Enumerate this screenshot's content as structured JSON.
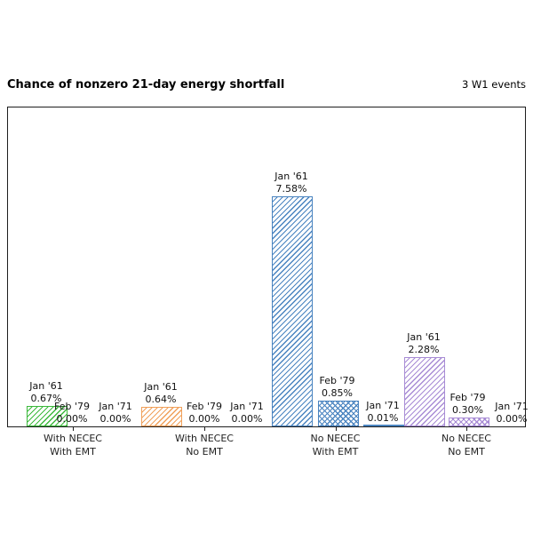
{
  "header": {
    "title": "Chance of nonzero 21-day energy shortfall",
    "right_note": "3 W1 events"
  },
  "chart_data": {
    "type": "bar",
    "title": "Chance of nonzero 21-day energy shortfall",
    "annotation": "3 W1 events",
    "ylabel": "",
    "xlabel": "",
    "ylim": [
      0,
      10.55
    ],
    "grid": false,
    "legend": "none",
    "value_unit": "%",
    "series_periods": [
      "Jan '61",
      "Feb '79",
      "Jan '71"
    ],
    "groups": [
      {
        "label": [
          "With NECEC",
          "With EMT"
        ],
        "color": "#3cb93c",
        "bars": [
          {
            "period": "Jan '61",
            "value": 0.67,
            "display": "0.67%",
            "hatch": "/"
          },
          {
            "period": "Feb '79",
            "value": 0.0,
            "display": "0.00%",
            "hatch": "/"
          },
          {
            "period": "Jan '71",
            "value": 0.0,
            "display": "0.00%",
            "hatch": "/"
          }
        ]
      },
      {
        "label": [
          "With NECEC",
          "No EMT"
        ],
        "color": "#f0a05a",
        "bars": [
          {
            "period": "Jan '61",
            "value": 0.64,
            "display": "0.64%",
            "hatch": "/"
          },
          {
            "period": "Feb '79",
            "value": 0.0,
            "display": "0.00%",
            "hatch": "/"
          },
          {
            "period": "Jan '71",
            "value": 0.0,
            "display": "0.00%",
            "hatch": "/"
          }
        ]
      },
      {
        "label": [
          "No NECEC",
          "With EMT"
        ],
        "color": "#4a84c0",
        "bars": [
          {
            "period": "Jan '61",
            "value": 7.58,
            "display": "7.58%",
            "hatch": "/"
          },
          {
            "period": "Feb '79",
            "value": 0.85,
            "display": "0.85%",
            "hatch": "x"
          },
          {
            "period": "Jan '71",
            "value": 0.01,
            "display": "0.01%",
            "hatch": "/"
          }
        ]
      },
      {
        "label": [
          "No NECEC",
          "No EMT"
        ],
        "color": "#a88cd5",
        "bars": [
          {
            "period": "Jan '61",
            "value": 2.28,
            "display": "2.28%",
            "hatch": "/"
          },
          {
            "period": "Feb '79",
            "value": 0.3,
            "display": "0.30%",
            "hatch": "x"
          },
          {
            "period": "Jan '71",
            "value": 0.0,
            "display": "0.00%",
            "hatch": "/"
          }
        ]
      }
    ]
  }
}
